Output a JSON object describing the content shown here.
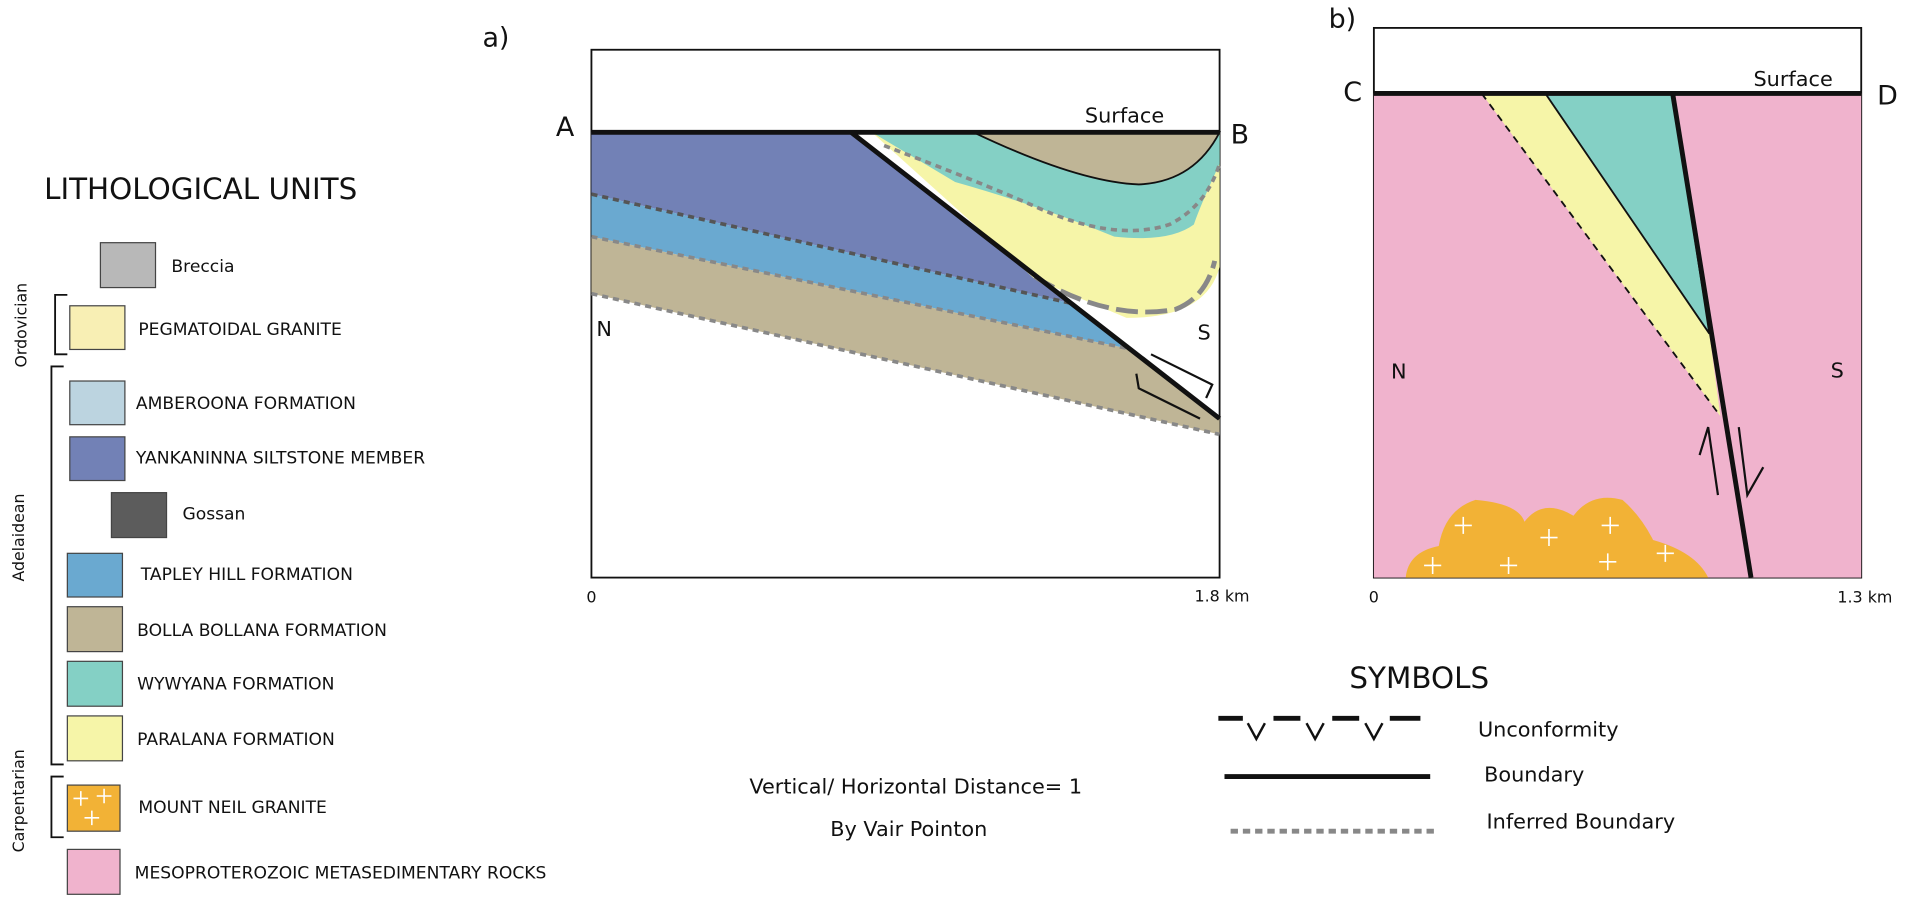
{
  "legend": {
    "title": "LITHOLOGICAL UNITS",
    "groups": [
      "Ordovician",
      "Adelaidean",
      "Carpentarian"
    ],
    "items": [
      "Breccia",
      "PEGMATOIDAL GRANITE",
      "AMBEROONA FORMATION",
      "YANKANINNA SILTSTONE MEMBER",
      "Gossan",
      "TAPLEY HILL FORMATION",
      "BOLLA BOLLANA FORMATION",
      "WYWYANA FORMATION",
      "PARALANA FORMATION",
      "MOUNT NEIL GRANITE",
      "MESOPROTEROZOIC METASEDIMENTARY ROCKS"
    ]
  },
  "section_a": {
    "label": "a)",
    "left_end": "A",
    "right_end": "B",
    "surface": "Surface",
    "north": "N",
    "south": "S",
    "scale_start": "0",
    "scale_end": "1.8 km"
  },
  "section_b": {
    "label": "b)",
    "left_end": "C",
    "right_end": "D",
    "surface": "Surface",
    "north": "N",
    "south": "S",
    "scale_start": "0",
    "scale_end": "1.3 km"
  },
  "notes": [
    "Vertical/ Horizontal Distance= 1",
    "By Vair Pointon"
  ],
  "symbols": {
    "title": "SYMBOLS",
    "items": [
      "Unconformity",
      "Boundary",
      "Inferred Boundary"
    ]
  }
}
